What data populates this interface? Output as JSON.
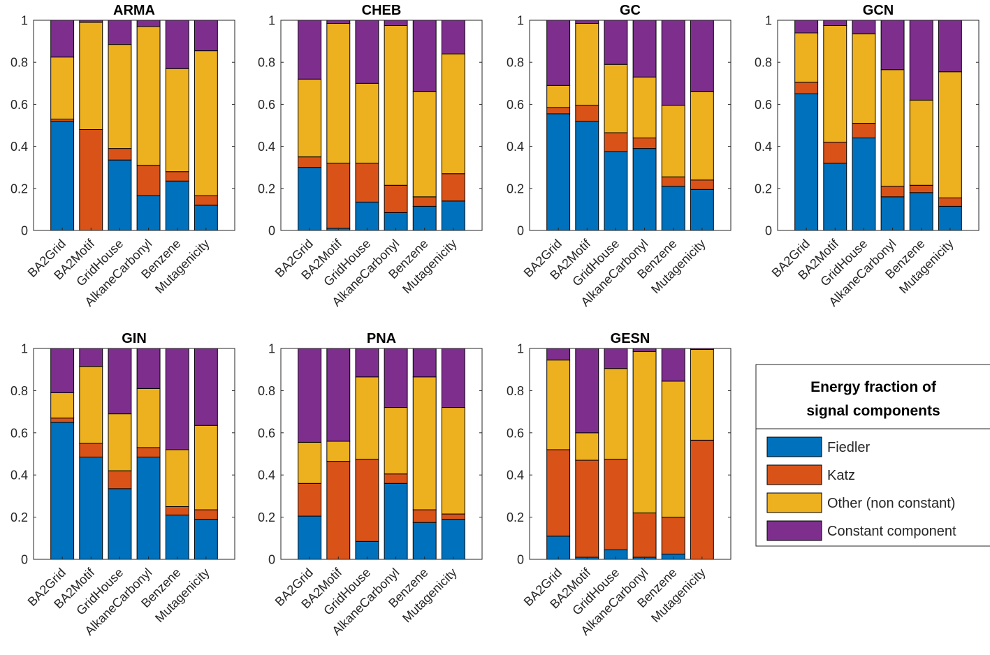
{
  "colors": {
    "Fiedler": "#0072BD",
    "Katz": "#D95319",
    "Other": "#EDB120",
    "Constant": "#7E2F8E"
  },
  "legend": {
    "title_line1": "Energy fraction of",
    "title_line2": "signal components",
    "items": [
      {
        "key": "Fiedler",
        "label": "Fiedler"
      },
      {
        "key": "Katz",
        "label": "Katz"
      },
      {
        "key": "Other",
        "label": "Other (non constant)"
      },
      {
        "key": "Constant",
        "label": "Constant component"
      }
    ]
  },
  "chart_data": [
    {
      "type": "bar",
      "stacked": true,
      "title": "ARMA",
      "categories": [
        "BA2Grid",
        "BA2Motif",
        "GridHouse",
        "AlkaneCarbonyl",
        "Benzene",
        "Mutagenicity"
      ],
      "ylim": [
        0,
        1
      ],
      "yticks": [
        "0",
        "0.2",
        "0.4",
        "0.6",
        "0.8",
        "1"
      ],
      "series": [
        {
          "name": "Fiedler",
          "values": [
            0.52,
            0.0,
            0.335,
            0.165,
            0.235,
            0.12
          ]
        },
        {
          "name": "Katz",
          "values": [
            0.01,
            0.48,
            0.055,
            0.145,
            0.045,
            0.045
          ]
        },
        {
          "name": "Other (non constant)",
          "values": [
            0.295,
            0.51,
            0.495,
            0.66,
            0.49,
            0.69
          ]
        },
        {
          "name": "Constant component",
          "values": [
            0.175,
            0.01,
            0.115,
            0.03,
            0.23,
            0.145
          ]
        }
      ]
    },
    {
      "type": "bar",
      "stacked": true,
      "title": "CHEB",
      "categories": [
        "BA2Grid",
        "BA2Motif",
        "GridHouse",
        "AlkaneCarbonyl",
        "Benzene",
        "Mutagenicity"
      ],
      "ylim": [
        0,
        1
      ],
      "yticks": [
        "0",
        "0.2",
        "0.4",
        "0.6",
        "0.8",
        "1"
      ],
      "series": [
        {
          "name": "Fiedler",
          "values": [
            0.3,
            0.01,
            0.135,
            0.085,
            0.115,
            0.14
          ]
        },
        {
          "name": "Katz",
          "values": [
            0.05,
            0.31,
            0.185,
            0.13,
            0.045,
            0.13
          ]
        },
        {
          "name": "Other (non constant)",
          "values": [
            0.37,
            0.665,
            0.38,
            0.76,
            0.5,
            0.57
          ]
        },
        {
          "name": "Constant component",
          "values": [
            0.28,
            0.015,
            0.3,
            0.025,
            0.34,
            0.16
          ]
        }
      ]
    },
    {
      "type": "bar",
      "stacked": true,
      "title": "GC",
      "categories": [
        "BA2Grid",
        "BA2Motif",
        "GridHouse",
        "AlkaneCarbonyl",
        "Benzene",
        "Mutagenicity"
      ],
      "ylim": [
        0,
        1
      ],
      "yticks": [
        "0",
        "0.2",
        "0.4",
        "0.6",
        "0.8",
        "1"
      ],
      "series": [
        {
          "name": "Fiedler",
          "values": [
            0.555,
            0.52,
            0.375,
            0.39,
            0.21,
            0.195
          ]
        },
        {
          "name": "Katz",
          "values": [
            0.03,
            0.075,
            0.09,
            0.05,
            0.045,
            0.045
          ]
        },
        {
          "name": "Other (non constant)",
          "values": [
            0.105,
            0.39,
            0.325,
            0.29,
            0.34,
            0.42
          ]
        },
        {
          "name": "Constant component",
          "values": [
            0.31,
            0.015,
            0.21,
            0.27,
            0.405,
            0.34
          ]
        }
      ]
    },
    {
      "type": "bar",
      "stacked": true,
      "title": "GCN",
      "categories": [
        "BA2Grid",
        "BA2Motif",
        "GridHouse",
        "AlkaneCarbonyl",
        "Benzene",
        "Mutagenicity"
      ],
      "ylim": [
        0,
        1
      ],
      "yticks": [
        "0",
        "0.2",
        "0.4",
        "0.6",
        "0.8",
        "1"
      ],
      "series": [
        {
          "name": "Fiedler",
          "values": [
            0.65,
            0.32,
            0.44,
            0.16,
            0.18,
            0.115
          ]
        },
        {
          "name": "Katz",
          "values": [
            0.055,
            0.1,
            0.07,
            0.05,
            0.035,
            0.04
          ]
        },
        {
          "name": "Other (non constant)",
          "values": [
            0.235,
            0.555,
            0.425,
            0.555,
            0.405,
            0.6
          ]
        },
        {
          "name": "Constant component",
          "values": [
            0.06,
            0.025,
            0.065,
            0.235,
            0.38,
            0.245
          ]
        }
      ]
    },
    {
      "type": "bar",
      "stacked": true,
      "title": "GIN",
      "categories": [
        "BA2Grid",
        "BA2Motif",
        "GridHouse",
        "AlkaneCarbonyl",
        "Benzene",
        "Mutagenicity"
      ],
      "ylim": [
        0,
        1
      ],
      "yticks": [
        "0",
        "0.2",
        "0.4",
        "0.6",
        "0.8",
        "1"
      ],
      "series": [
        {
          "name": "Fiedler",
          "values": [
            0.65,
            0.485,
            0.335,
            0.485,
            0.21,
            0.19
          ]
        },
        {
          "name": "Katz",
          "values": [
            0.02,
            0.065,
            0.085,
            0.045,
            0.04,
            0.045
          ]
        },
        {
          "name": "Other (non constant)",
          "values": [
            0.12,
            0.365,
            0.27,
            0.28,
            0.27,
            0.4
          ]
        },
        {
          "name": "Constant component",
          "values": [
            0.21,
            0.085,
            0.31,
            0.19,
            0.48,
            0.365
          ]
        }
      ]
    },
    {
      "type": "bar",
      "stacked": true,
      "title": "PNA",
      "categories": [
        "BA2Grid",
        "BA2Motif",
        "GridHouse",
        "AlkaneCarbonyl",
        "Benzene",
        "Mutagenicity"
      ],
      "ylim": [
        0,
        1
      ],
      "yticks": [
        "0",
        "0.2",
        "0.4",
        "0.6",
        "0.8",
        "1"
      ],
      "series": [
        {
          "name": "Fiedler",
          "values": [
            0.205,
            0.0,
            0.085,
            0.36,
            0.175,
            0.19
          ]
        },
        {
          "name": "Katz",
          "values": [
            0.155,
            0.465,
            0.39,
            0.045,
            0.06,
            0.025
          ]
        },
        {
          "name": "Other (non constant)",
          "values": [
            0.195,
            0.095,
            0.39,
            0.315,
            0.63,
            0.505
          ]
        },
        {
          "name": "Constant component",
          "values": [
            0.445,
            0.44,
            0.135,
            0.28,
            0.135,
            0.28
          ]
        }
      ]
    },
    {
      "type": "bar",
      "stacked": true,
      "title": "GESN",
      "categories": [
        "BA2Grid",
        "BA2Motif",
        "GridHouse",
        "AlkaneCarbonyl",
        "Benzene",
        "Mutagenicity"
      ],
      "ylim": [
        0,
        1
      ],
      "yticks": [
        "0",
        "0.2",
        "0.4",
        "0.6",
        "0.8",
        "1"
      ],
      "series": [
        {
          "name": "Fiedler",
          "values": [
            0.11,
            0.01,
            0.045,
            0.01,
            0.025,
            0.0
          ]
        },
        {
          "name": "Katz",
          "values": [
            0.41,
            0.46,
            0.43,
            0.21,
            0.175,
            0.565
          ]
        },
        {
          "name": "Other (non constant)",
          "values": [
            0.425,
            0.13,
            0.43,
            0.765,
            0.645,
            0.43
          ]
        },
        {
          "name": "Constant component",
          "values": [
            0.055,
            0.4,
            0.095,
            0.015,
            0.155,
            0.005
          ]
        }
      ]
    }
  ]
}
